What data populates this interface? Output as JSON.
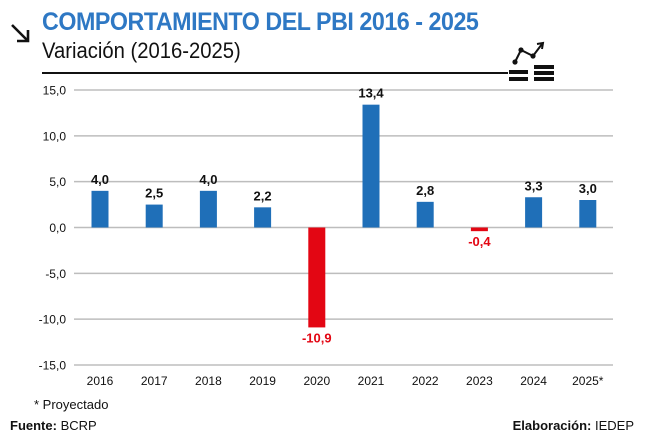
{
  "header": {
    "title": "COMPORTAMIENTO DEL PBI 2016 - 2025",
    "subtitle": "Variación (2016-2025)",
    "arrow_icon": "arrow-down-right-icon",
    "chart_icon": "growth-chart-icon"
  },
  "colors": {
    "title": "#2e78c4",
    "positive": "#1f6fb8",
    "negative": "#e30613",
    "grid": "#bdbdbd"
  },
  "chart_data": {
    "type": "bar",
    "title": "COMPORTAMIENTO DEL PBI 2016 - 2025",
    "subtitle": "Variación (2016-2025)",
    "xlabel": "",
    "ylabel": "",
    "ylim": [
      -15,
      15
    ],
    "yticks": [
      15,
      10,
      5,
      0,
      -5,
      -10,
      -15
    ],
    "ytick_labels": [
      "15,0",
      "10,0",
      "5,0",
      "0,0",
      "-5,0",
      "-10,0",
      "-15,0"
    ],
    "grid": true,
    "categories": [
      "2016",
      "2017",
      "2018",
      "2019",
      "2020",
      "2021",
      "2022",
      "2023",
      "2024",
      "2025*"
    ],
    "values": [
      4.0,
      2.5,
      4.0,
      2.2,
      -10.9,
      13.4,
      2.8,
      -0.4,
      3.3,
      3.0
    ],
    "value_labels": [
      "4,0",
      "2,5",
      "4,0",
      "2,2",
      "-10,9",
      "13,4",
      "2,8",
      "-0,4",
      "3,3",
      "3,0"
    ]
  },
  "footer": {
    "footnote": "* Proyectado",
    "source_label": "Fuente:",
    "source_value": "BCRP",
    "credit_label": "Elaboración:",
    "credit_value": "IEDEP"
  }
}
